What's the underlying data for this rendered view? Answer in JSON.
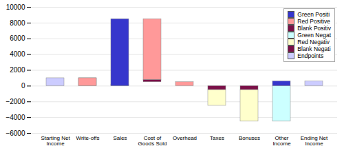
{
  "chart_data": {
    "type": "bar",
    "categories": [
      "Starting Net\nIncome",
      "Write-offs",
      "Sales",
      "Cost of\nGoods Sold",
      "Overhead",
      "Taxes",
      "Bonuses",
      "Other\nIncome",
      "Ending Net\nIncome"
    ],
    "ylim": [
      -6000,
      10000
    ],
    "yticks": [
      -6000,
      -4000,
      -2000,
      0,
      2000,
      4000,
      6000,
      8000,
      10000
    ],
    "grid": true,
    "legend": "upper right",
    "series": [
      {
        "name": "Green Positi",
        "color": "#3636cc",
        "values": [
          null,
          null,
          8500,
          null,
          null,
          null,
          null,
          600,
          null
        ],
        "bases": [
          null,
          null,
          0,
          null,
          null,
          null,
          null,
          0,
          null
        ]
      },
      {
        "name": "Red Positive",
        "color": "#ff9999",
        "values": [
          null,
          1000,
          null,
          7700,
          500,
          null,
          null,
          null,
          null
        ],
        "bases": [
          null,
          0,
          null,
          800,
          0,
          null,
          null,
          null,
          null
        ]
      },
      {
        "name": "Blank Positiv",
        "color": "#7a1048",
        "values": [
          null,
          null,
          null,
          300,
          null,
          null,
          null,
          null,
          null
        ],
        "bases": [
          null,
          null,
          null,
          500,
          null,
          null,
          null,
          null,
          null
        ]
      },
      {
        "name": "Green Negat",
        "color": "#ccffff",
        "values": [
          null,
          null,
          200,
          null,
          null,
          null,
          null,
          4500,
          null
        ],
        "bases": [
          null,
          null,
          0,
          null,
          null,
          null,
          null,
          -4500,
          null
        ]
      },
      {
        "name": "Red Negativ",
        "color": "#ffffcc",
        "values": [
          null,
          1000,
          null,
          null,
          null,
          2000,
          4000,
          null,
          null
        ],
        "bases": [
          null,
          0,
          null,
          null,
          null,
          -2500,
          -4500,
          null,
          null
        ]
      },
      {
        "name": "Blank Negati",
        "color": "#7a1048",
        "values": [
          null,
          null,
          null,
          null,
          null,
          500,
          500,
          null,
          null
        ],
        "bases": [
          null,
          null,
          null,
          null,
          null,
          -500,
          -500,
          null,
          null
        ]
      },
      {
        "name": "Endpoints",
        "color": "#ccccff",
        "values": [
          1000,
          null,
          null,
          null,
          null,
          null,
          null,
          null,
          600
        ],
        "bases": [
          0,
          null,
          null,
          null,
          null,
          null,
          null,
          null,
          0
        ]
      }
    ]
  }
}
